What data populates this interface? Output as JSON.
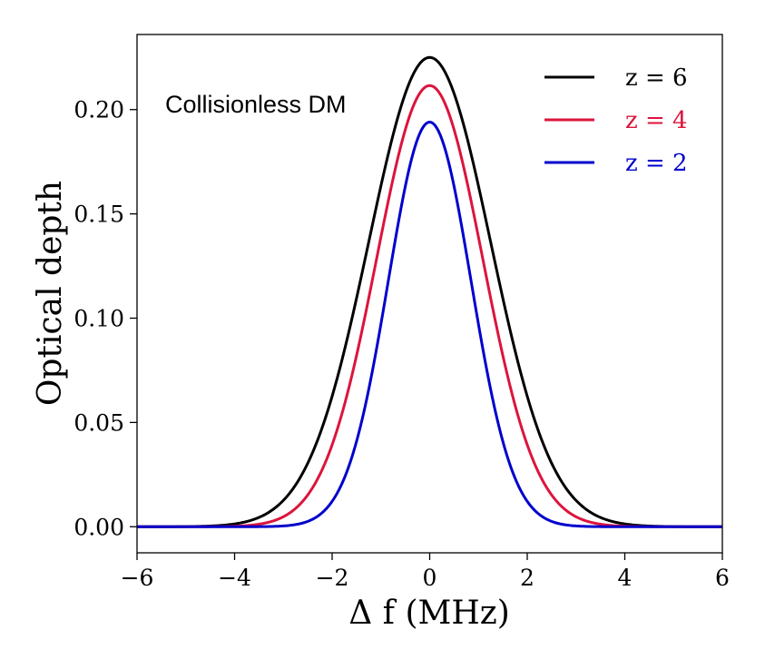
{
  "chart_data": {
    "type": "line",
    "title": "",
    "xlabel": "Δ f (MHz)",
    "ylabel": "Optical depth",
    "xlim": [
      -6,
      6
    ],
    "ylim": [
      -0.0125,
      0.236
    ],
    "xticks": [
      -6,
      -4,
      -2,
      0,
      2,
      4,
      6
    ],
    "xtick_labels": [
      "−6",
      "−4",
      "−2",
      "0",
      "2",
      "4",
      "6"
    ],
    "yticks": [
      0.0,
      0.05,
      0.1,
      0.15,
      0.2
    ],
    "ytick_labels": [
      "0.00",
      "0.05",
      "0.10",
      "0.15",
      "0.20"
    ],
    "grid": false,
    "legend_position": "top-right",
    "annotation": "Collisionless DM",
    "series": [
      {
        "name": "z = 6",
        "color": "#000000",
        "peak": 0.225,
        "sigma": 1.25
      },
      {
        "name": "z = 4",
        "color": "#dc143c",
        "peak": 0.2115,
        "sigma": 1.09
      },
      {
        "name": "z = 2",
        "color": "#0000cd",
        "peak": 0.194,
        "sigma": 0.85
      }
    ]
  }
}
